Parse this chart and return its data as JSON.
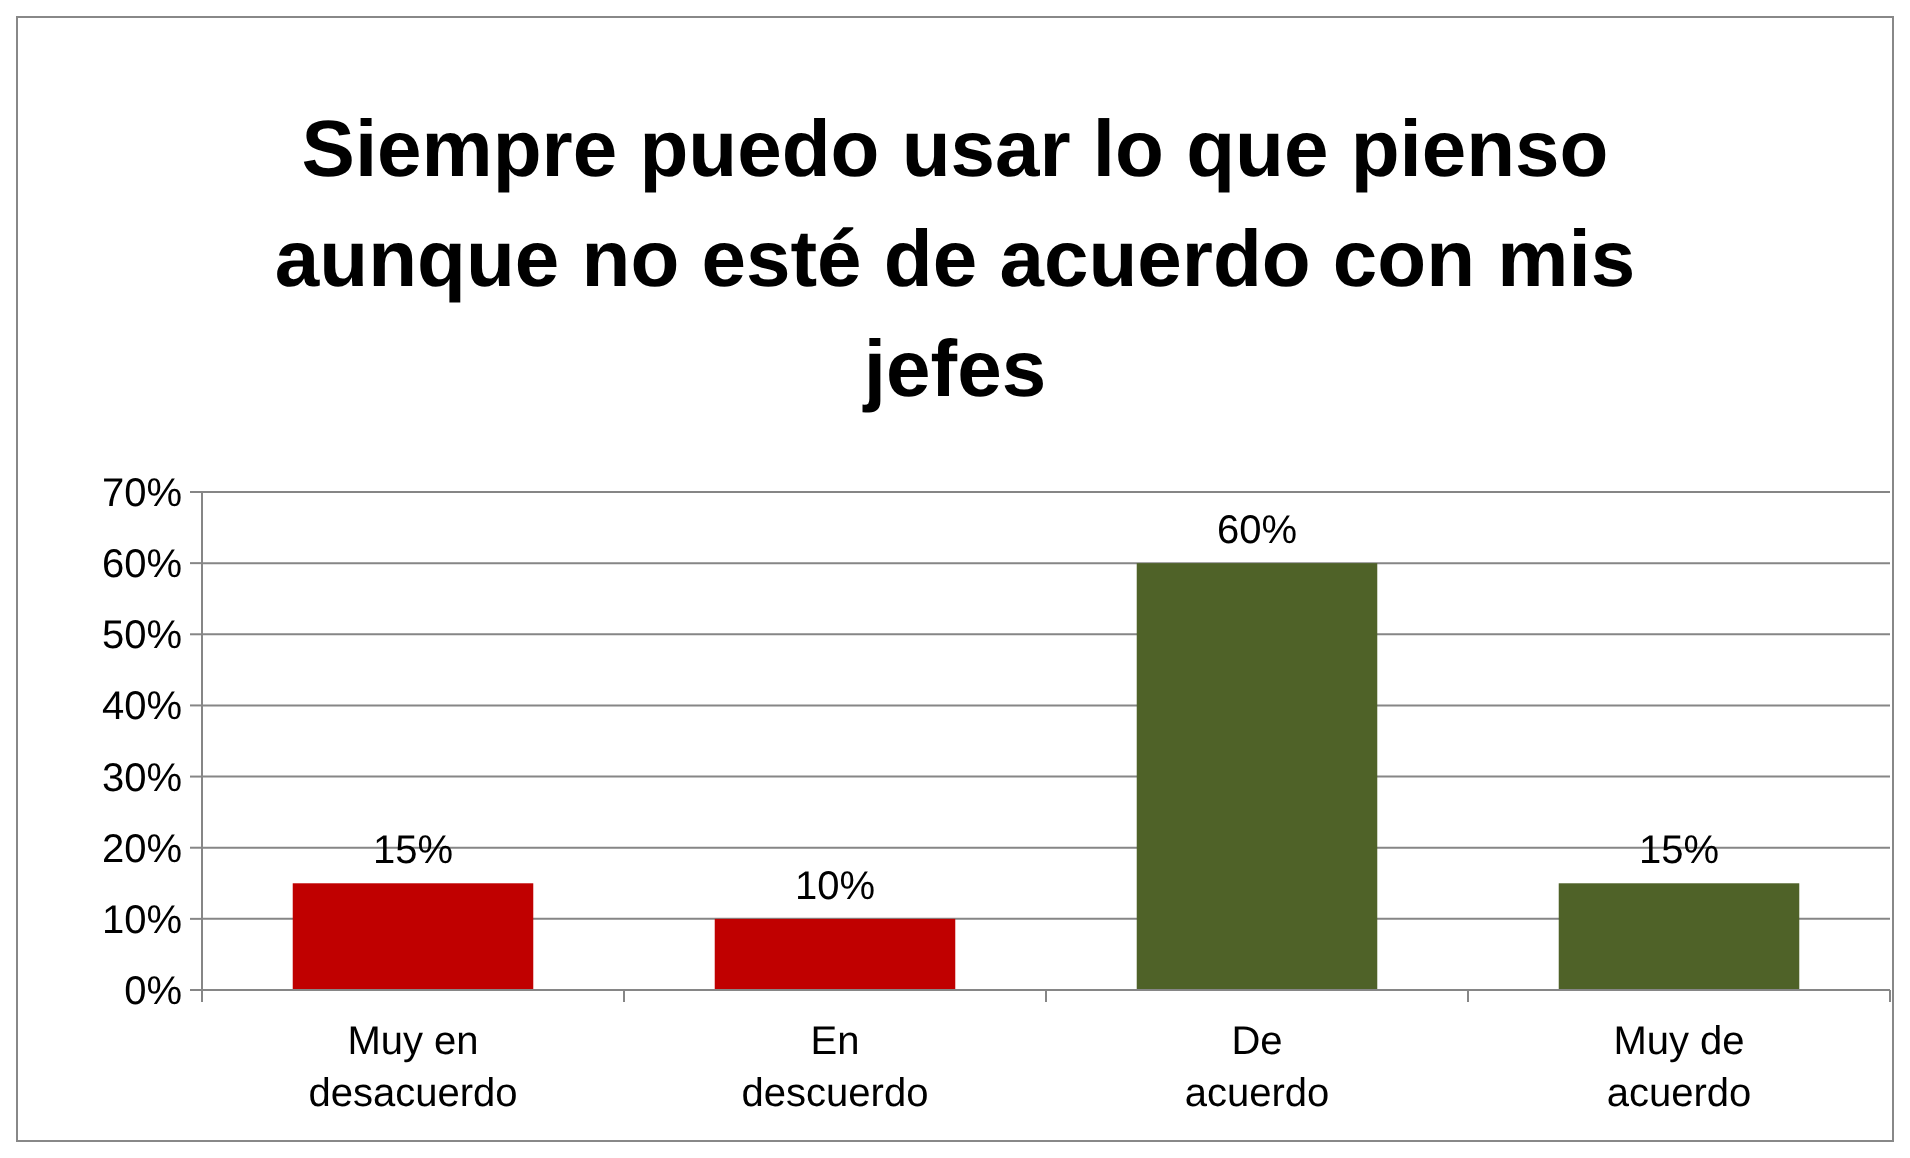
{
  "chart_data": {
    "type": "bar",
    "title": "Siempre puedo usar lo que pienso aunque no esté de acuerdo con mis jefes",
    "categories": [
      "Muy en desacuerdo",
      "En descuerdo",
      "De acuerdo",
      "Muy de acuerdo"
    ],
    "values": [
      15,
      10,
      60,
      15
    ],
    "colors": [
      "#c00000",
      "#c00000",
      "#4f6228",
      "#4f6228"
    ],
    "value_labels": [
      "15%",
      "10%",
      "60%",
      "15%"
    ],
    "ylim": [
      0,
      70
    ],
    "yticks": [
      {
        "value": 0,
        "label": "0%"
      },
      {
        "value": 10,
        "label": "10%"
      },
      {
        "value": 20,
        "label": "20%"
      },
      {
        "value": 30,
        "label": "30%"
      },
      {
        "value": 40,
        "label": "40%"
      },
      {
        "value": 50,
        "label": "50%"
      },
      {
        "value": 60,
        "label": "60%"
      },
      {
        "value": 70,
        "label": "70%"
      }
    ],
    "grid": true
  }
}
